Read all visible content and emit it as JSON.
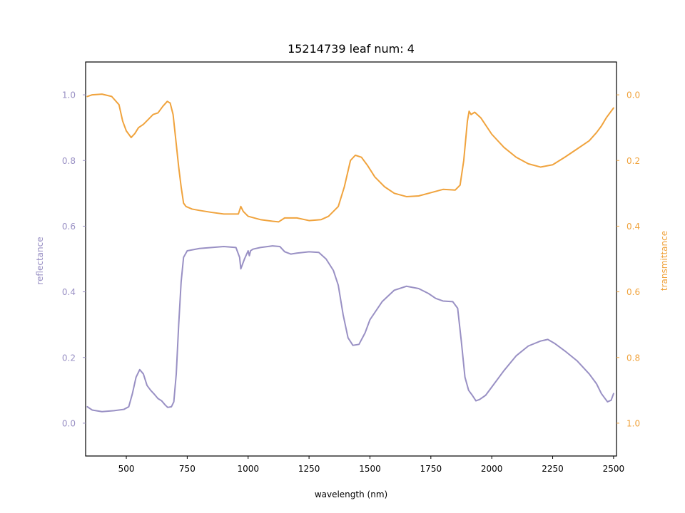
{
  "chart_data": {
    "type": "line",
    "title": "15214739 leaf num: 4",
    "xlabel": "wavelength (nm)",
    "ylabel_left": "reflectance",
    "ylabel_right": "transmittance",
    "xlim": [
      333,
      2512
    ],
    "ylim_left": [
      -0.1,
      1.1
    ],
    "ylim_right": [
      1.1,
      -0.1
    ],
    "right_axis_inverted": true,
    "x_ticks": [
      500,
      750,
      1000,
      1250,
      1500,
      1750,
      2000,
      2250,
      2500
    ],
    "left_ticks": [
      0.0,
      0.2,
      0.4,
      0.6,
      0.8,
      1.0
    ],
    "right_ticks": [
      0.0,
      0.2,
      0.4,
      0.6,
      0.8,
      1.0
    ],
    "grid": false,
    "series": [
      {
        "name": "reflectance",
        "axis": "left",
        "color": "#9990c4",
        "points": [
          [
            340,
            0.05
          ],
          [
            360,
            0.04
          ],
          [
            400,
            0.035
          ],
          [
            450,
            0.038
          ],
          [
            490,
            0.042
          ],
          [
            510,
            0.05
          ],
          [
            525,
            0.09
          ],
          [
            540,
            0.14
          ],
          [
            555,
            0.163
          ],
          [
            570,
            0.15
          ],
          [
            585,
            0.115
          ],
          [
            600,
            0.1
          ],
          [
            615,
            0.088
          ],
          [
            630,
            0.075
          ],
          [
            645,
            0.068
          ],
          [
            660,
            0.055
          ],
          [
            670,
            0.048
          ],
          [
            685,
            0.05
          ],
          [
            695,
            0.065
          ],
          [
            705,
            0.15
          ],
          [
            715,
            0.3
          ],
          [
            725,
            0.43
          ],
          [
            735,
            0.505
          ],
          [
            750,
            0.525
          ],
          [
            800,
            0.532
          ],
          [
            850,
            0.535
          ],
          [
            900,
            0.538
          ],
          [
            950,
            0.535
          ],
          [
            965,
            0.505
          ],
          [
            970,
            0.47
          ],
          [
            985,
            0.5
          ],
          [
            1000,
            0.525
          ],
          [
            1005,
            0.51
          ],
          [
            1010,
            0.525
          ],
          [
            1020,
            0.53
          ],
          [
            1050,
            0.535
          ],
          [
            1100,
            0.54
          ],
          [
            1130,
            0.538
          ],
          [
            1150,
            0.522
          ],
          [
            1175,
            0.515
          ],
          [
            1200,
            0.518
          ],
          [
            1250,
            0.522
          ],
          [
            1290,
            0.52
          ],
          [
            1320,
            0.5
          ],
          [
            1350,
            0.465
          ],
          [
            1370,
            0.42
          ],
          [
            1390,
            0.33
          ],
          [
            1410,
            0.26
          ],
          [
            1430,
            0.237
          ],
          [
            1455,
            0.24
          ],
          [
            1480,
            0.275
          ],
          [
            1500,
            0.315
          ],
          [
            1550,
            0.37
          ],
          [
            1600,
            0.405
          ],
          [
            1650,
            0.417
          ],
          [
            1700,
            0.41
          ],
          [
            1740,
            0.395
          ],
          [
            1770,
            0.38
          ],
          [
            1800,
            0.372
          ],
          [
            1840,
            0.37
          ],
          [
            1860,
            0.35
          ],
          [
            1875,
            0.25
          ],
          [
            1890,
            0.14
          ],
          [
            1905,
            0.1
          ],
          [
            1920,
            0.085
          ],
          [
            1935,
            0.068
          ],
          [
            1950,
            0.072
          ],
          [
            1975,
            0.085
          ],
          [
            2000,
            0.11
          ],
          [
            2050,
            0.16
          ],
          [
            2100,
            0.205
          ],
          [
            2150,
            0.235
          ],
          [
            2200,
            0.25
          ],
          [
            2230,
            0.255
          ],
          [
            2260,
            0.242
          ],
          [
            2300,
            0.22
          ],
          [
            2350,
            0.19
          ],
          [
            2400,
            0.15
          ],
          [
            2430,
            0.12
          ],
          [
            2450,
            0.09
          ],
          [
            2475,
            0.065
          ],
          [
            2490,
            0.07
          ],
          [
            2500,
            0.09
          ]
        ]
      },
      {
        "name": "transmittance",
        "axis": "right",
        "color": "#f0a33d",
        "points": [
          [
            340,
            0.005
          ],
          [
            360,
            0.0
          ],
          [
            400,
            -0.002
          ],
          [
            440,
            0.005
          ],
          [
            470,
            0.03
          ],
          [
            485,
            0.08
          ],
          [
            500,
            0.11
          ],
          [
            520,
            0.13
          ],
          [
            535,
            0.118
          ],
          [
            550,
            0.1
          ],
          [
            570,
            0.09
          ],
          [
            590,
            0.075
          ],
          [
            610,
            0.06
          ],
          [
            630,
            0.055
          ],
          [
            650,
            0.035
          ],
          [
            668,
            0.02
          ],
          [
            680,
            0.025
          ],
          [
            692,
            0.06
          ],
          [
            705,
            0.15
          ],
          [
            715,
            0.22
          ],
          [
            725,
            0.28
          ],
          [
            735,
            0.33
          ],
          [
            745,
            0.34
          ],
          [
            770,
            0.348
          ],
          [
            800,
            0.352
          ],
          [
            850,
            0.358
          ],
          [
            900,
            0.363
          ],
          [
            960,
            0.363
          ],
          [
            970,
            0.34
          ],
          [
            980,
            0.355
          ],
          [
            1000,
            0.37
          ],
          [
            1050,
            0.38
          ],
          [
            1100,
            0.385
          ],
          [
            1125,
            0.387
          ],
          [
            1150,
            0.375
          ],
          [
            1200,
            0.375
          ],
          [
            1250,
            0.383
          ],
          [
            1300,
            0.38
          ],
          [
            1330,
            0.37
          ],
          [
            1370,
            0.34
          ],
          [
            1395,
            0.28
          ],
          [
            1420,
            0.2
          ],
          [
            1440,
            0.184
          ],
          [
            1465,
            0.19
          ],
          [
            1490,
            0.215
          ],
          [
            1520,
            0.25
          ],
          [
            1560,
            0.28
          ],
          [
            1600,
            0.3
          ],
          [
            1650,
            0.31
          ],
          [
            1700,
            0.308
          ],
          [
            1750,
            0.298
          ],
          [
            1800,
            0.288
          ],
          [
            1850,
            0.29
          ],
          [
            1870,
            0.275
          ],
          [
            1885,
            0.2
          ],
          [
            1900,
            0.08
          ],
          [
            1907,
            0.05
          ],
          [
            1915,
            0.06
          ],
          [
            1930,
            0.053
          ],
          [
            1955,
            0.07
          ],
          [
            2000,
            0.12
          ],
          [
            2050,
            0.16
          ],
          [
            2100,
            0.19
          ],
          [
            2150,
            0.21
          ],
          [
            2200,
            0.22
          ],
          [
            2250,
            0.213
          ],
          [
            2300,
            0.19
          ],
          [
            2350,
            0.165
          ],
          [
            2400,
            0.14
          ],
          [
            2430,
            0.115
          ],
          [
            2450,
            0.095
          ],
          [
            2470,
            0.07
          ],
          [
            2490,
            0.05
          ],
          [
            2500,
            0.04
          ]
        ]
      }
    ]
  }
}
